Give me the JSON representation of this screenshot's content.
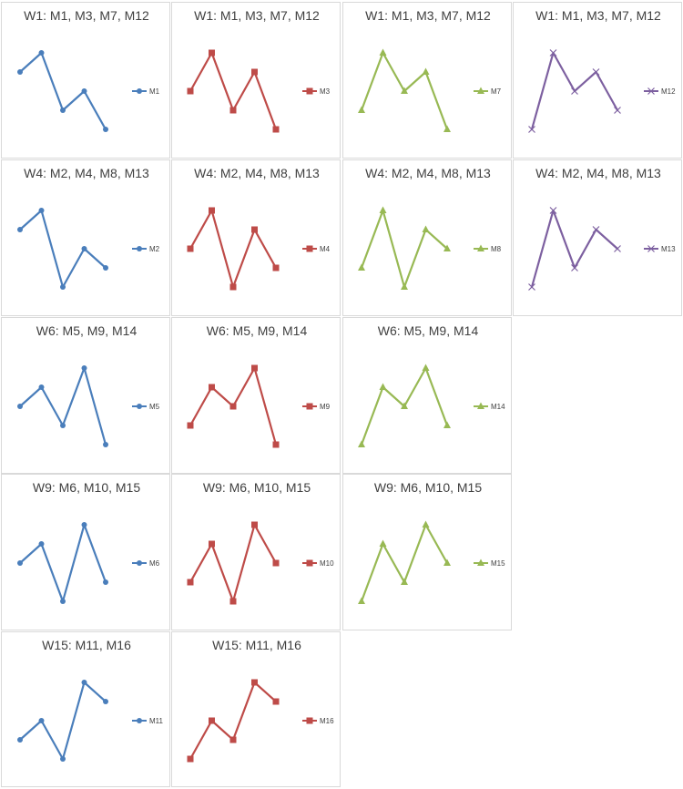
{
  "chart_data": [
    {
      "type": "line",
      "title": "W1: M1, M3, M7, M12",
      "series": [
        {
          "name": "M1",
          "values": [
            3,
            4,
            1,
            2,
            0
          ],
          "color": "#4a7ebb",
          "marker": "circle"
        }
      ]
    },
    {
      "type": "line",
      "title": "W1: M1, M3, M7, M12",
      "series": [
        {
          "name": "M3",
          "values": [
            2,
            4,
            1,
            3,
            0
          ],
          "color": "#be4b48",
          "marker": "square"
        }
      ]
    },
    {
      "type": "line",
      "title": "W1: M1, M3, M7, M12",
      "series": [
        {
          "name": "M7",
          "values": [
            1,
            4,
            2,
            3,
            0
          ],
          "color": "#98b954",
          "marker": "triangle"
        }
      ]
    },
    {
      "type": "line",
      "title": "W1: M1, M3, M7, M12",
      "series": [
        {
          "name": "M12",
          "values": [
            0,
            4,
            2,
            3,
            1
          ],
          "color": "#7d60a0",
          "marker": "x"
        }
      ]
    },
    {
      "type": "line",
      "title": "W4: M2, M4, M8, M13",
      "series": [
        {
          "name": "M2",
          "values": [
            3,
            4,
            0,
            2,
            1
          ],
          "color": "#4a7ebb",
          "marker": "circle"
        }
      ]
    },
    {
      "type": "line",
      "title": "W4: M2, M4, M8, M13",
      "series": [
        {
          "name": "M4",
          "values": [
            2,
            4,
            0,
            3,
            1
          ],
          "color": "#be4b48",
          "marker": "square"
        }
      ]
    },
    {
      "type": "line",
      "title": "W4: M2, M4, M8, M13",
      "series": [
        {
          "name": "M8",
          "values": [
            1,
            4,
            0,
            3,
            2
          ],
          "color": "#98b954",
          "marker": "triangle"
        }
      ]
    },
    {
      "type": "line",
      "title": "W4: M2, M4, M8, M13",
      "series": [
        {
          "name": "M13",
          "values": [
            0,
            4,
            1,
            3,
            2
          ],
          "color": "#7d60a0",
          "marker": "x"
        }
      ]
    },
    {
      "type": "line",
      "title": "W6: M5, M9, M14",
      "series": [
        {
          "name": "M5",
          "values": [
            2,
            3,
            1,
            4,
            0
          ],
          "color": "#4a7ebb",
          "marker": "circle"
        }
      ]
    },
    {
      "type": "line",
      "title": "W6: M5, M9, M14",
      "series": [
        {
          "name": "M9",
          "values": [
            1,
            3,
            2,
            4,
            0
          ],
          "color": "#be4b48",
          "marker": "square"
        }
      ]
    },
    {
      "type": "line",
      "title": "W6: M5, M9, M14",
      "series": [
        {
          "name": "M14",
          "values": [
            0,
            3,
            2,
            4,
            1
          ],
          "color": "#98b954",
          "marker": "triangle"
        }
      ]
    },
    {
      "type": "line",
      "title": "W9: M6, M10, M15",
      "series": [
        {
          "name": "M6",
          "values": [
            2,
            3,
            0,
            4,
            1
          ],
          "color": "#4a7ebb",
          "marker": "circle"
        }
      ]
    },
    {
      "type": "line",
      "title": "W9: M6, M10, M15",
      "series": [
        {
          "name": "M10",
          "values": [
            1,
            3,
            0,
            4,
            2
          ],
          "color": "#be4b48",
          "marker": "square"
        }
      ]
    },
    {
      "type": "line",
      "title": "W9: M6, M10, M15",
      "series": [
        {
          "name": "M15",
          "values": [
            0,
            3,
            1,
            4,
            2
          ],
          "color": "#98b954",
          "marker": "triangle"
        }
      ]
    },
    {
      "type": "line",
      "title": "W15: M11, M16",
      "series": [
        {
          "name": "M11",
          "values": [
            1,
            2,
            0,
            4,
            3
          ],
          "color": "#4a7ebb",
          "marker": "circle"
        }
      ]
    },
    {
      "type": "line",
      "title": "W15: M11, M16",
      "series": [
        {
          "name": "M16",
          "values": [
            0,
            2,
            1,
            4,
            3
          ],
          "color": "#be4b48",
          "marker": "square"
        }
      ]
    }
  ]
}
